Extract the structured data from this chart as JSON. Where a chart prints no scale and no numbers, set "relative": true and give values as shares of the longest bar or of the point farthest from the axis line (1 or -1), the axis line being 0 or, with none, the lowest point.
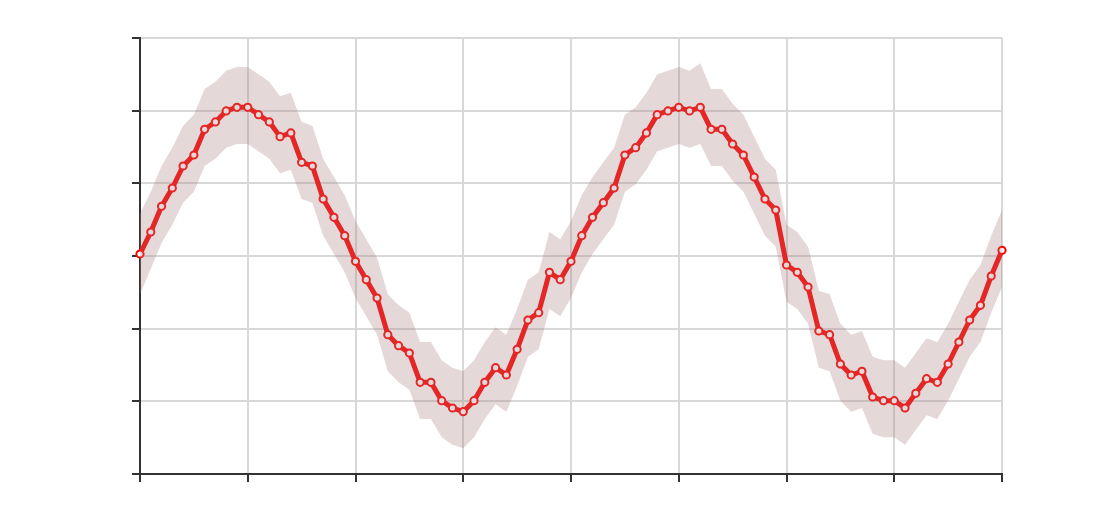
{
  "chart_data": {
    "type": "line",
    "relative": true,
    "grid": true,
    "tick_labels": false,
    "marker": "circle",
    "line_style": "solid",
    "categories": [
      null,
      null,
      null,
      null,
      null,
      null,
      null,
      null,
      null,
      null,
      null,
      null,
      null,
      null,
      null,
      null,
      null,
      null,
      null,
      null,
      null,
      null,
      null,
      null,
      null,
      null,
      null,
      null,
      null,
      null,
      null,
      null,
      null,
      null,
      null,
      null,
      null,
      null,
      null,
      null,
      null,
      null,
      null,
      null,
      null,
      null,
      null,
      null,
      null,
      null,
      null,
      null,
      null,
      null,
      null,
      null,
      null,
      null,
      null,
      null,
      null,
      null,
      null,
      null,
      null,
      null,
      null,
      null,
      null,
      null,
      null,
      null,
      null,
      null,
      null,
      null,
      null,
      null,
      null,
      null,
      null
    ],
    "series": [
      {
        "color": "#ff0000",
        "values": [
          0.6,
          0.66,
          0.73,
          0.78,
          0.84,
          0.87,
          0.94,
          0.96,
          0.99,
          1.0,
          1.0,
          0.98,
          0.96,
          0.92,
          0.93,
          0.85,
          0.84,
          0.75,
          0.7,
          0.65,
          0.58,
          0.53,
          0.48,
          0.38,
          0.35,
          0.33,
          0.25,
          0.25,
          0.2,
          0.18,
          0.17,
          0.2,
          0.25,
          0.29,
          0.27,
          0.34,
          0.42,
          0.44,
          0.55,
          0.53,
          0.58,
          0.65,
          0.7,
          0.74,
          0.78,
          0.87,
          0.89,
          0.93,
          0.98,
          0.99,
          1.0,
          0.99,
          1.0,
          0.94,
          0.94,
          0.9,
          0.87,
          0.81,
          0.75,
          0.72,
          0.57,
          0.55,
          0.51,
          0.39,
          0.38,
          0.3,
          0.27,
          0.28,
          0.21,
          0.2,
          0.2,
          0.18,
          0.22,
          0.26,
          0.25,
          0.3,
          0.36,
          0.42,
          0.46,
          0.54,
          0.61
        ],
        "upper": [
          0.71,
          0.77,
          0.84,
          0.89,
          0.95,
          0.98,
          1.05,
          1.07,
          1.1,
          1.11,
          1.11,
          1.09,
          1.07,
          1.03,
          1.04,
          0.96,
          0.95,
          0.86,
          0.81,
          0.76,
          0.69,
          0.64,
          0.59,
          0.49,
          0.46,
          0.44,
          0.36,
          0.36,
          0.31,
          0.29,
          0.28,
          0.31,
          0.36,
          0.4,
          0.38,
          0.45,
          0.53,
          0.55,
          0.66,
          0.64,
          0.69,
          0.76,
          0.81,
          0.85,
          0.89,
          0.98,
          1.0,
          1.04,
          1.09,
          1.1,
          1.11,
          1.1,
          1.12,
          1.05,
          1.05,
          1.01,
          0.98,
          0.92,
          0.86,
          0.83,
          0.68,
          0.66,
          0.62,
          0.5,
          0.49,
          0.41,
          0.38,
          0.39,
          0.32,
          0.31,
          0.31,
          0.29,
          0.33,
          0.37,
          0.36,
          0.41,
          0.47,
          0.53,
          0.57,
          0.65,
          0.72
        ],
        "lower": [
          0.49,
          0.56,
          0.63,
          0.68,
          0.74,
          0.77,
          0.84,
          0.86,
          0.89,
          0.9,
          0.9,
          0.88,
          0.86,
          0.82,
          0.83,
          0.75,
          0.74,
          0.65,
          0.6,
          0.55,
          0.48,
          0.43,
          0.38,
          0.28,
          0.25,
          0.23,
          0.15,
          0.15,
          0.1,
          0.08,
          0.07,
          0.1,
          0.15,
          0.19,
          0.17,
          0.24,
          0.32,
          0.34,
          0.45,
          0.43,
          0.48,
          0.55,
          0.6,
          0.64,
          0.68,
          0.77,
          0.79,
          0.83,
          0.88,
          0.89,
          0.9,
          0.89,
          0.9,
          0.84,
          0.84,
          0.8,
          0.77,
          0.71,
          0.65,
          0.62,
          0.47,
          0.45,
          0.41,
          0.29,
          0.28,
          0.2,
          0.17,
          0.18,
          0.11,
          0.1,
          0.1,
          0.08,
          0.12,
          0.16,
          0.15,
          0.2,
          0.26,
          0.32,
          0.36,
          0.44,
          0.51
        ]
      }
    ]
  }
}
